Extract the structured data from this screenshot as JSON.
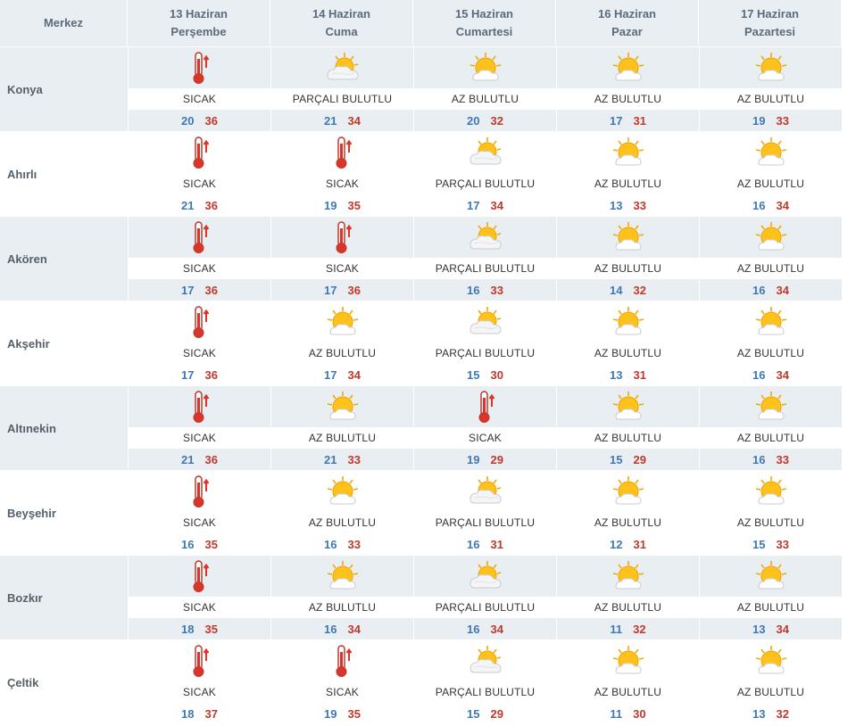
{
  "header": {
    "city_col": "Merkez",
    "days": [
      {
        "date": "13 Haziran",
        "weekday": "Perşembe"
      },
      {
        "date": "14 Haziran",
        "weekday": "Cuma"
      },
      {
        "date": "15 Haziran",
        "weekday": "Cumartesi"
      },
      {
        "date": "16 Haziran",
        "weekday": "Pazar"
      },
      {
        "date": "17 Haziran",
        "weekday": "Pazartesi"
      }
    ]
  },
  "rows": [
    {
      "city": "Konya",
      "days": [
        {
          "icon": "thermometer-icon",
          "desc": "SICAK",
          "min": "20",
          "max": "36"
        },
        {
          "icon": "partly-cloudy-icon",
          "desc": "PARÇALI BULUTLU",
          "min": "21",
          "max": "34"
        },
        {
          "icon": "mostly-sunny-icon",
          "desc": "AZ BULUTLU",
          "min": "20",
          "max": "32"
        },
        {
          "icon": "mostly-sunny-icon",
          "desc": "AZ BULUTLU",
          "min": "17",
          "max": "31"
        },
        {
          "icon": "mostly-sunny-icon",
          "desc": "AZ BULUTLU",
          "min": "19",
          "max": "33"
        }
      ]
    },
    {
      "city": "Ahırlı",
      "days": [
        {
          "icon": "thermometer-icon",
          "desc": "SICAK",
          "min": "21",
          "max": "36"
        },
        {
          "icon": "thermometer-icon",
          "desc": "SICAK",
          "min": "19",
          "max": "35"
        },
        {
          "icon": "partly-cloudy-icon",
          "desc": "PARÇALI BULUTLU",
          "min": "17",
          "max": "34"
        },
        {
          "icon": "mostly-sunny-icon",
          "desc": "AZ BULUTLU",
          "min": "13",
          "max": "33"
        },
        {
          "icon": "mostly-sunny-icon",
          "desc": "AZ BULUTLU",
          "min": "16",
          "max": "34"
        }
      ]
    },
    {
      "city": "Akören",
      "days": [
        {
          "icon": "thermometer-icon",
          "desc": "SICAK",
          "min": "17",
          "max": "36"
        },
        {
          "icon": "thermometer-icon",
          "desc": "SICAK",
          "min": "17",
          "max": "36"
        },
        {
          "icon": "partly-cloudy-icon",
          "desc": "PARÇALI BULUTLU",
          "min": "16",
          "max": "33"
        },
        {
          "icon": "mostly-sunny-icon",
          "desc": "AZ BULUTLU",
          "min": "14",
          "max": "32"
        },
        {
          "icon": "mostly-sunny-icon",
          "desc": "AZ BULUTLU",
          "min": "16",
          "max": "34"
        }
      ]
    },
    {
      "city": "Akşehir",
      "days": [
        {
          "icon": "thermometer-icon",
          "desc": "SICAK",
          "min": "17",
          "max": "36"
        },
        {
          "icon": "mostly-sunny-icon",
          "desc": "AZ BULUTLU",
          "min": "17",
          "max": "34"
        },
        {
          "icon": "partly-cloudy-icon",
          "desc": "PARÇALI BULUTLU",
          "min": "15",
          "max": "30"
        },
        {
          "icon": "mostly-sunny-icon",
          "desc": "AZ BULUTLU",
          "min": "13",
          "max": "31"
        },
        {
          "icon": "mostly-sunny-icon",
          "desc": "AZ BULUTLU",
          "min": "16",
          "max": "34"
        }
      ]
    },
    {
      "city": "Altınekin",
      "days": [
        {
          "icon": "thermometer-icon",
          "desc": "SICAK",
          "min": "21",
          "max": "36"
        },
        {
          "icon": "mostly-sunny-icon",
          "desc": "AZ BULUTLU",
          "min": "21",
          "max": "33"
        },
        {
          "icon": "thermometer-icon",
          "desc": "SICAK",
          "min": "19",
          "max": "29"
        },
        {
          "icon": "mostly-sunny-icon",
          "desc": "AZ BULUTLU",
          "min": "15",
          "max": "29"
        },
        {
          "icon": "mostly-sunny-icon",
          "desc": "AZ BULUTLU",
          "min": "16",
          "max": "33"
        }
      ]
    },
    {
      "city": "Beyşehir",
      "days": [
        {
          "icon": "thermometer-icon",
          "desc": "SICAK",
          "min": "16",
          "max": "35"
        },
        {
          "icon": "mostly-sunny-icon",
          "desc": "AZ BULUTLU",
          "min": "16",
          "max": "33"
        },
        {
          "icon": "partly-cloudy-icon",
          "desc": "PARÇALI BULUTLU",
          "min": "16",
          "max": "31"
        },
        {
          "icon": "mostly-sunny-icon",
          "desc": "AZ BULUTLU",
          "min": "12",
          "max": "31"
        },
        {
          "icon": "mostly-sunny-icon",
          "desc": "AZ BULUTLU",
          "min": "15",
          "max": "33"
        }
      ]
    },
    {
      "city": "Bozkır",
      "days": [
        {
          "icon": "thermometer-icon",
          "desc": "SICAK",
          "min": "18",
          "max": "35"
        },
        {
          "icon": "mostly-sunny-icon",
          "desc": "AZ BULUTLU",
          "min": "16",
          "max": "34"
        },
        {
          "icon": "partly-cloudy-icon",
          "desc": "PARÇALI BULUTLU",
          "min": "16",
          "max": "34"
        },
        {
          "icon": "mostly-sunny-icon",
          "desc": "AZ BULUTLU",
          "min": "11",
          "max": "32"
        },
        {
          "icon": "mostly-sunny-icon",
          "desc": "AZ BULUTLU",
          "min": "13",
          "max": "34"
        }
      ]
    },
    {
      "city": "Çeltik",
      "days": [
        {
          "icon": "thermometer-icon",
          "desc": "SICAK",
          "min": "18",
          "max": "37"
        },
        {
          "icon": "thermometer-icon",
          "desc": "SICAK",
          "min": "19",
          "max": "35"
        },
        {
          "icon": "partly-cloudy-icon",
          "desc": "PARÇALI BULUTLU",
          "min": "15",
          "max": "29"
        },
        {
          "icon": "mostly-sunny-icon",
          "desc": "AZ BULUTLU",
          "min": "11",
          "max": "30"
        },
        {
          "icon": "mostly-sunny-icon",
          "desc": "AZ BULUTLU",
          "min": "13",
          "max": "32"
        }
      ]
    }
  ],
  "colors": {
    "header_bg": "#e9eef2",
    "row_shade": "#e9eef2",
    "min_temp": "#3f79b5",
    "max_temp": "#c0392b",
    "label": "#55606b"
  }
}
